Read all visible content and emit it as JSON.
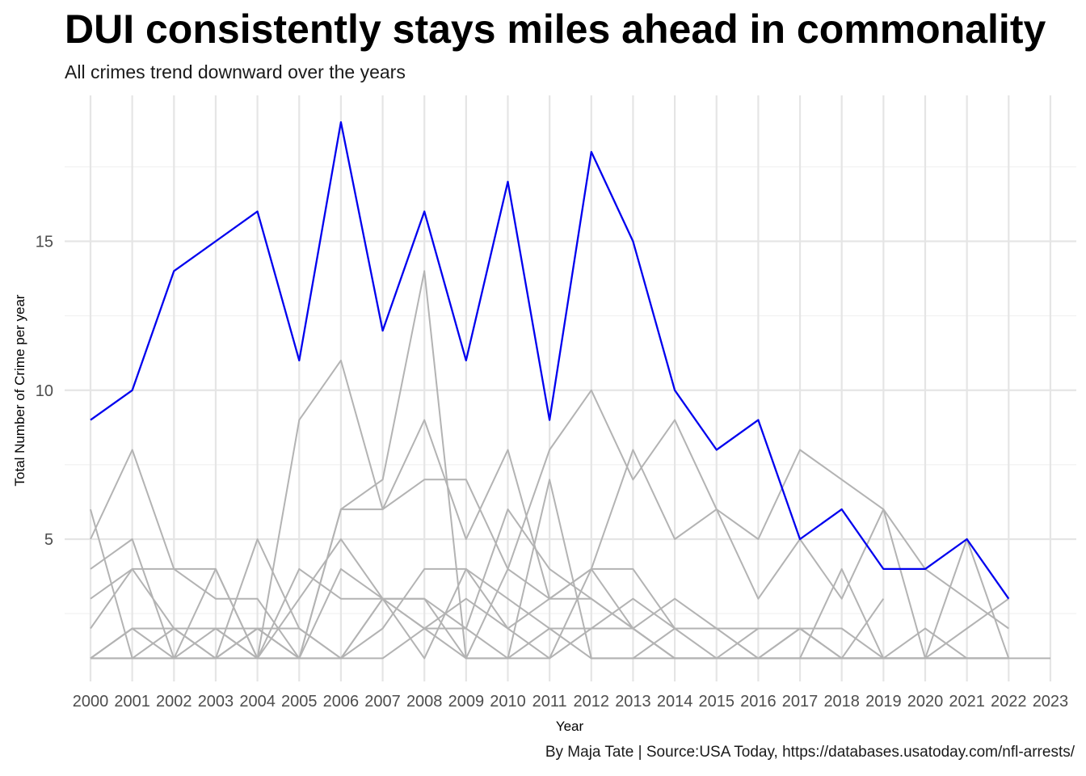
{
  "chart_data": {
    "type": "line",
    "title": "DUI consistently stays miles ahead in commonality",
    "subtitle": "All crimes trend downward over the years",
    "caption": "By Maja Tate | Source:USA Today, https://databases.usatoday.com/nfl-arrests/",
    "xlabel": "Year",
    "ylabel": "Total Number of Crime per year",
    "categories": [
      "2000",
      "2001",
      "2002",
      "2003",
      "2004",
      "2005",
      "2006",
      "2007",
      "2008",
      "2009",
      "2010",
      "2011",
      "2012",
      "2013",
      "2014",
      "2015",
      "2016",
      "2017",
      "2018",
      "2019",
      "2020",
      "2021",
      "2022",
      "2023"
    ],
    "y_ticks": [
      5,
      10,
      15
    ],
    "ylim": [
      0.3,
      19.3
    ],
    "grid": true,
    "highlight_color": "#0000ee",
    "background_color": "#b3b3b3",
    "series": [
      {
        "name": "DUI",
        "highlight": true,
        "values": [
          9,
          10,
          14,
          15,
          16,
          11,
          19,
          12,
          16,
          11,
          17,
          9,
          18,
          15,
          10,
          8,
          9,
          5,
          6,
          4,
          4,
          5,
          3,
          null
        ]
      },
      {
        "values": [
          6,
          1,
          1,
          1,
          5,
          2,
          1,
          3,
          3,
          1,
          1,
          1,
          2,
          2,
          1,
          1,
          1,
          1,
          1,
          1,
          1,
          1,
          1,
          1
        ]
      },
      {
        "values": [
          5,
          8,
          4,
          4,
          1,
          9,
          11,
          6,
          9,
          5,
          8,
          3,
          4,
          4,
          2,
          2,
          1,
          2,
          1,
          1,
          1,
          1,
          1,
          null
        ]
      },
      {
        "values": [
          4,
          5,
          1,
          1,
          1,
          1,
          6,
          7,
          14,
          1,
          4,
          8,
          10,
          7,
          9,
          6,
          5,
          8,
          7,
          6,
          4,
          3,
          2,
          null
        ]
      },
      {
        "values": [
          3,
          4,
          4,
          3,
          3,
          1,
          6,
          6,
          7,
          7,
          4,
          3,
          4,
          8,
          5,
          6,
          3,
          5,
          3,
          6,
          1,
          5,
          1,
          null
        ]
      },
      {
        "values": [
          2,
          4,
          2,
          2,
          1,
          4,
          3,
          3,
          3,
          2,
          6,
          4,
          3,
          2,
          1,
          1,
          2,
          2,
          2,
          1,
          1,
          1,
          1,
          null
        ]
      },
      {
        "values": [
          1,
          2,
          2,
          1,
          2,
          1,
          4,
          3,
          1,
          4,
          2,
          1,
          4,
          2,
          3,
          2,
          1,
          1,
          1,
          1,
          1,
          2,
          3,
          null
        ]
      },
      {
        "values": [
          1,
          1,
          1,
          4,
          1,
          3,
          5,
          3,
          2,
          1,
          1,
          2,
          2,
          3,
          2,
          2,
          2,
          2,
          1,
          1,
          1,
          1,
          1,
          null
        ]
      },
      {
        "values": [
          1,
          2,
          2,
          2,
          2,
          2,
          1,
          2,
          4,
          4,
          3,
          2,
          1,
          1,
          2,
          1,
          1,
          2,
          1,
          1,
          2,
          1,
          1,
          null
        ]
      },
      {
        "values": [
          1,
          1,
          2,
          1,
          2,
          1,
          1,
          3,
          2,
          3,
          2,
          3,
          3,
          2,
          1,
          1,
          1,
          1,
          4,
          1,
          1,
          1,
          1,
          null
        ]
      },
      {
        "values": [
          1,
          2,
          1,
          2,
          1,
          1,
          1,
          1,
          2,
          2,
          1,
          7,
          1,
          1,
          1,
          1,
          1,
          1,
          1,
          3,
          null,
          null,
          null,
          null
        ]
      }
    ]
  }
}
